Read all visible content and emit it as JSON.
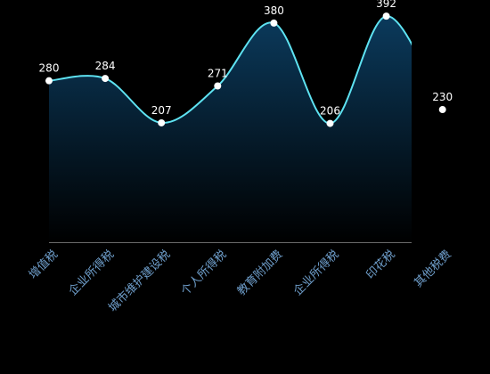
{
  "chart_data": {
    "type": "area",
    "categories": [
      "增值税",
      "企业所得税",
      "城市维护建设税",
      "个人所得税",
      "教育附加费",
      "企业所得税",
      "印花税",
      "其他税费"
    ],
    "values": [
      280,
      284,
      207,
      271,
      380,
      206,
      392,
      230
    ],
    "value_labels": [
      "280",
      "284",
      "207",
      "271",
      "380",
      "206",
      "392",
      "230"
    ],
    "title": "",
    "xlabel": "",
    "ylabel": "",
    "ylim": [
      0,
      420
    ],
    "grid": false,
    "legend": "none",
    "colors": {
      "background": "#000000",
      "line": "#5ee3f2",
      "area_top": "#0b3a5c",
      "area_bottom": "#000000",
      "point": "#ffffff",
      "label": "#ffffff",
      "tick": "#6f9fcc",
      "axis": "#6a6a6a"
    }
  }
}
